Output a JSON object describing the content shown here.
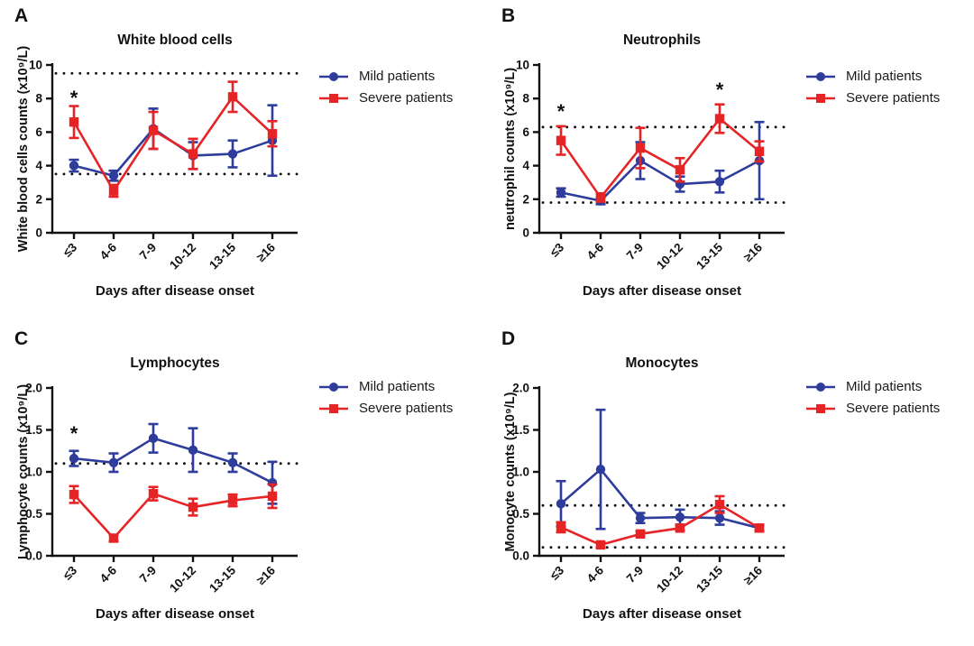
{
  "figure": {
    "xlabel": "Days after disease onset",
    "legend": {
      "mild_label": "Mild patients",
      "severe_label": "Severe patients"
    },
    "colors": {
      "mild_blue": "#2e3d9b",
      "severe_red": "#e62325",
      "axis_black": "#111111"
    }
  },
  "chart_data": [
    {
      "type": "line",
      "panel": "A",
      "title": "White blood cells",
      "xlabel": "Days after disease onset",
      "ylabel": "White blood cells counts (x10⁹/L)",
      "categories": [
        "≤3",
        "4-6",
        "7-9",
        "10-12",
        "13-15",
        "≥16"
      ],
      "ylim": [
        0,
        10
      ],
      "yticks": [
        0,
        2,
        4,
        6,
        8,
        10
      ],
      "ytick_decimals": 0,
      "grid": false,
      "legend_position": "right-top",
      "reference_lines": [
        9.5,
        3.5
      ],
      "series": [
        {
          "name": "Mild patients",
          "marker": "circle",
          "color": "#2e3d9b",
          "values": [
            4.0,
            3.4,
            6.2,
            4.6,
            4.7,
            5.5
          ],
          "errors": [
            0.35,
            0.3,
            1.2,
            0.8,
            0.8,
            2.1
          ]
        },
        {
          "name": "Severe patients",
          "marker": "square",
          "color": "#e62325",
          "values": [
            6.6,
            2.5,
            6.1,
            4.7,
            8.1,
            5.9
          ],
          "errors": [
            0.95,
            0.35,
            1.1,
            0.9,
            0.9,
            0.75
          ]
        }
      ],
      "annotations": [
        {
          "text": "*",
          "category_index": 0,
          "y": 8.0
        }
      ]
    },
    {
      "type": "line",
      "panel": "B",
      "title": "Neutrophils",
      "xlabel": "Days after disease onset",
      "ylabel": "neutrophil counts (x10⁹/L)",
      "categories": [
        "≤3",
        "4-6",
        "7-9",
        "10-12",
        "13-15",
        "≥16"
      ],
      "ylim": [
        0,
        10
      ],
      "yticks": [
        0,
        2,
        4,
        6,
        8,
        10
      ],
      "ytick_decimals": 0,
      "grid": false,
      "legend_position": "right-top",
      "reference_lines": [
        6.3,
        1.8
      ],
      "series": [
        {
          "name": "Mild patients",
          "marker": "circle",
          "color": "#2e3d9b",
          "values": [
            2.4,
            1.9,
            4.3,
            2.9,
            3.05,
            4.3
          ],
          "errors": [
            0.25,
            0.2,
            1.1,
            0.45,
            0.65,
            2.3
          ]
        },
        {
          "name": "Severe patients",
          "marker": "square",
          "color": "#e62325",
          "values": [
            5.5,
            2.1,
            5.05,
            3.75,
            6.8,
            4.85
          ],
          "errors": [
            0.85,
            0.25,
            1.2,
            0.7,
            0.85,
            0.6
          ]
        }
      ],
      "annotations": [
        {
          "text": "*",
          "category_index": 0,
          "y": 7.2
        },
        {
          "text": "*",
          "category_index": 4,
          "y": 8.5
        }
      ]
    },
    {
      "type": "line",
      "panel": "C",
      "title": "Lymphocytes",
      "xlabel": "Days after disease onset",
      "ylabel": "Lymphocyte counts (x10⁹/L)",
      "categories": [
        "≤3",
        "4-6",
        "7-9",
        "10-12",
        "13-15",
        "≥16"
      ],
      "ylim": [
        0,
        2
      ],
      "yticks": [
        0,
        0.5,
        1,
        1.5,
        2
      ],
      "ytick_decimals": 1,
      "grid": false,
      "legend_position": "right-top",
      "reference_lines": [
        1.1
      ],
      "series": [
        {
          "name": "Mild patients",
          "marker": "circle",
          "color": "#2e3d9b",
          "values": [
            1.16,
            1.11,
            1.4,
            1.26,
            1.11,
            0.87
          ],
          "errors": [
            0.09,
            0.11,
            0.17,
            0.26,
            0.11,
            0.25
          ]
        },
        {
          "name": "Severe patients",
          "marker": "square",
          "color": "#e62325",
          "values": [
            0.73,
            0.21,
            0.74,
            0.58,
            0.66,
            0.71
          ],
          "errors": [
            0.1,
            0.04,
            0.08,
            0.1,
            0.07,
            0.14
          ]
        }
      ],
      "annotations": [
        {
          "text": "*",
          "category_index": 0,
          "y": 1.45
        }
      ]
    },
    {
      "type": "line",
      "panel": "D",
      "title": "Monocytes",
      "xlabel": "Days after disease onset",
      "ylabel": "Monocyte counts (x10⁹/L)",
      "categories": [
        "≤3",
        "4-6",
        "7-9",
        "10-12",
        "13-15",
        "≥16"
      ],
      "ylim": [
        0,
        2
      ],
      "yticks": [
        0,
        0.5,
        1,
        1.5,
        2
      ],
      "ytick_decimals": 1,
      "grid": false,
      "legend_position": "right-top",
      "reference_lines": [
        0.6,
        0.1
      ],
      "series": [
        {
          "name": "Mild patients",
          "marker": "circle",
          "color": "#2e3d9b",
          "values": [
            0.62,
            1.03,
            0.45,
            0.46,
            0.45,
            0.33
          ],
          "errors": [
            0.27,
            0.71,
            0.06,
            0.09,
            0.08,
            0.03
          ]
        },
        {
          "name": "Severe patients",
          "marker": "square",
          "color": "#e62325",
          "values": [
            0.34,
            0.13,
            0.26,
            0.33,
            0.61,
            0.33
          ],
          "errors": [
            0.06,
            0.03,
            0.03,
            0.03,
            0.1,
            0.04
          ]
        }
      ],
      "annotations": []
    }
  ]
}
